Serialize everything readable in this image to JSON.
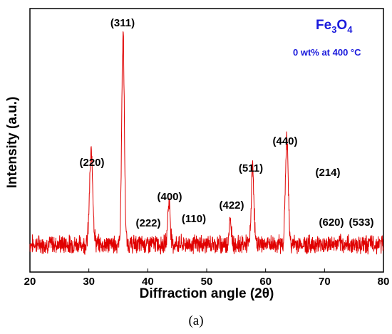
{
  "chart_data": {
    "type": "line",
    "xlabel": "Diffraction angle (2θ)",
    "ylabel": "Intensity (a.u.)",
    "xlim": [
      20,
      80
    ],
    "x_ticks": [
      20,
      30,
      40,
      50,
      60,
      70,
      80
    ],
    "y_ticks_shown": false,
    "grid": false,
    "line_color": "#e00000",
    "legend": {
      "compound": "Fe",
      "sub1": "3",
      "mid": "O",
      "sub2": "4",
      "condition": "0 wt% at 400 °C",
      "color": "#1a1adc",
      "placement": "top-right"
    },
    "peaks": [
      {
        "label": "(220)",
        "x": 30.4,
        "height": 0.43
      },
      {
        "label": "(311)",
        "x": 35.8,
        "height": 1.0
      },
      {
        "label": "(222)",
        "x": 43.2,
        "height": 0.0
      },
      {
        "label": "(400)",
        "x": 43.6,
        "height": 0.2
      },
      {
        "label": "(110)",
        "x": 46.5,
        "height": 0.0
      },
      {
        "label": "(422)",
        "x": 54.0,
        "height": 0.1
      },
      {
        "label": "(511)",
        "x": 57.8,
        "height": 0.36
      },
      {
        "label": "(440)",
        "x": 63.6,
        "height": 0.5
      },
      {
        "label": "(214)",
        "x": 69.2,
        "height": 0.0
      },
      {
        "label": "(620)",
        "x": 72.5,
        "height": 0.0
      },
      {
        "label": "(533)",
        "x": 76.2,
        "height": 0.0
      }
    ]
  },
  "caption": "(a)"
}
